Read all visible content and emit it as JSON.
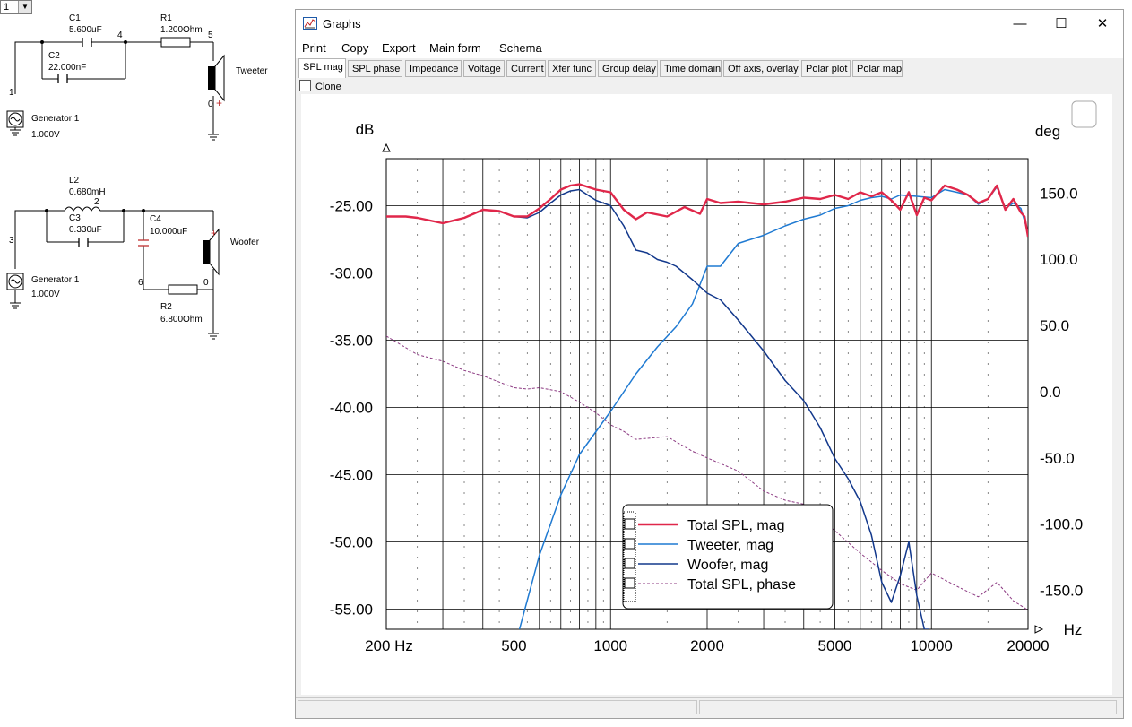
{
  "schematic": {
    "selector_value": "1",
    "tweeter_circuit": {
      "c1_name": "C1",
      "c1_value": "5.600uF",
      "c2_name": "C2",
      "c2_value": "22.000nF",
      "r1_name": "R1",
      "r1_value": "1.200Ohm",
      "node_1": "1",
      "node_4": "4",
      "node_5": "5",
      "node_0": "0",
      "speaker_label": "Tweeter",
      "generator_label": "Generator 1",
      "generator_value": "1.000V"
    },
    "woofer_circuit": {
      "l2_name": "L2",
      "l2_value": "0.680mH",
      "c3_name": "C3",
      "c3_value": "0.330uF",
      "c4_name": "C4",
      "c4_value": "10.000uF",
      "r2_name": "R2",
      "r2_value": "6.800Ohm",
      "node_3": "3",
      "node_2": "2",
      "node_6": "6",
      "node_0": "0",
      "speaker_label": "Woofer",
      "generator_label": "Generator 1",
      "generator_value": "1.000V"
    }
  },
  "window": {
    "title": "Graphs",
    "minimize_glyph": "—",
    "maximize_glyph": "☐",
    "close_glyph": "✕",
    "menu": [
      "Print",
      "Copy",
      "Export",
      "Main form",
      "Schema"
    ],
    "tabs": [
      "SPL mag",
      "SPL phase",
      "Impedance",
      "Voltage",
      "Current",
      "Xfer func",
      "Group delay",
      "Time domain",
      "Off axis, overlay",
      "Polar plot",
      "Polar map"
    ],
    "active_tab": "SPL mag",
    "clone_label": "Clone"
  },
  "chart_data": {
    "type": "line",
    "xscale": "log",
    "xlim": [
      200,
      20000
    ],
    "x_ticks": [
      "200 Hz",
      "500",
      "1000",
      "2000",
      "5000",
      "10000",
      "20000"
    ],
    "x_unit": "Hz",
    "ylabel_left": "dB",
    "ylim_left": [
      -56.5,
      -21.5
    ],
    "y_ticks_left": [
      "-25.00",
      "-30.00",
      "-35.00",
      "-40.00",
      "-45.00",
      "-50.00",
      "-55.00"
    ],
    "ylabel_right": "deg",
    "ylim_right": [
      -179.5,
      176
    ],
    "y_ticks_right": [
      "150.0",
      "100.0",
      "50.0",
      "0.0",
      "-50.0",
      "-100.0",
      "-150.0"
    ],
    "grid": true,
    "legend_position": "bottom-center",
    "series": [
      {
        "name": "Total SPL, mag",
        "color": "#e0274a",
        "axis": "left",
        "x": [
          200,
          230,
          250,
          300,
          350,
          400,
          450,
          500,
          550,
          600,
          650,
          700,
          750,
          800,
          900,
          1000,
          1100,
          1200,
          1300,
          1500,
          1700,
          1900,
          2000,
          2200,
          2500,
          3000,
          3500,
          4000,
          4500,
          5000,
          5500,
          6000,
          6500,
          7000,
          7500,
          8000,
          8500,
          9000,
          9500,
          10000,
          11000,
          12000,
          13000,
          14000,
          15000,
          16000,
          17000,
          18000,
          19000,
          19500,
          20000
        ],
        "y": [
          -25.8,
          -25.8,
          -25.9,
          -26.3,
          -25.9,
          -25.3,
          -25.4,
          -25.8,
          -25.8,
          -25.2,
          -24.5,
          -23.8,
          -23.5,
          -23.4,
          -23.8,
          -24.0,
          -25.3,
          -26.0,
          -25.5,
          -25.8,
          -25.1,
          -25.6,
          -24.5,
          -24.8,
          -24.7,
          -24.9,
          -24.7,
          -24.4,
          -24.5,
          -24.2,
          -24.5,
          -24.0,
          -24.3,
          -24.0,
          -24.6,
          -25.3,
          -24.0,
          -25.7,
          -24.4,
          -24.6,
          -23.5,
          -23.8,
          -24.2,
          -24.8,
          -24.5,
          -23.5,
          -25.3,
          -24.5,
          -25.5,
          -25.8,
          -27.3
        ]
      },
      {
        "name": "Tweeter, mag",
        "color": "#1f7ad2",
        "axis": "left",
        "x": [
          520,
          600,
          700,
          800,
          900,
          1000,
          1200,
          1400,
          1600,
          1800,
          2000,
          2200,
          2500,
          3000,
          3500,
          4000,
          4500,
          5000,
          5500,
          6000,
          6500,
          7000,
          7500,
          8000,
          9000,
          10000,
          11000,
          12000,
          13000,
          14000,
          15000,
          16000,
          17000,
          18000,
          19000,
          20000
        ],
        "y": [
          -56.5,
          -51.0,
          -46.5,
          -43.5,
          -41.8,
          -40.3,
          -37.5,
          -35.5,
          -34.0,
          -32.3,
          -29.5,
          -29.5,
          -27.8,
          -27.2,
          -26.5,
          -26.0,
          -25.7,
          -25.2,
          -25.0,
          -24.6,
          -24.4,
          -24.3,
          -24.5,
          -24.2,
          -24.3,
          -24.4,
          -23.8,
          -24.0,
          -24.2,
          -24.9,
          -24.5,
          -23.6,
          -25.2,
          -24.8,
          -25.2,
          -27.0
        ]
      },
      {
        "name": "Woofer, mag",
        "color": "#12388c",
        "axis": "left",
        "x": [
          200,
          230,
          250,
          300,
          350,
          400,
          450,
          500,
          550,
          600,
          650,
          700,
          750,
          800,
          900,
          1000,
          1100,
          1200,
          1300,
          1400,
          1500,
          1600,
          1800,
          2000,
          2200,
          2500,
          3000,
          3500,
          4000,
          4500,
          5000,
          5500,
          6000,
          6500,
          7000,
          7500,
          8000,
          8500,
          9000,
          9500,
          9800
        ],
        "y": [
          -25.8,
          -25.8,
          -25.9,
          -26.3,
          -25.9,
          -25.3,
          -25.4,
          -25.8,
          -25.9,
          -25.5,
          -24.8,
          -24.2,
          -23.9,
          -23.8,
          -24.6,
          -25.0,
          -26.5,
          -28.3,
          -28.5,
          -29.0,
          -29.2,
          -29.5,
          -30.5,
          -31.5,
          -32.0,
          -33.5,
          -35.8,
          -38.0,
          -39.5,
          -41.5,
          -43.8,
          -45.3,
          -47.0,
          -49.5,
          -53.0,
          -54.5,
          -52.5,
          -50.0,
          -54.0,
          -56.5,
          -56.5
        ]
      },
      {
        "name": "Total SPL, phase",
        "color": "#8c3a82",
        "axis": "right",
        "dashed": true,
        "x": [
          200,
          250,
          300,
          350,
          400,
          500,
          550,
          600,
          700,
          800,
          900,
          1000,
          1100,
          1200,
          1500,
          1800,
          2000,
          2500,
          3000,
          3500,
          4000,
          5000,
          6000,
          7000,
          8000,
          9000,
          10000,
          12000,
          14000,
          16000,
          18000,
          20000
        ],
        "y": [
          42,
          28,
          23,
          16,
          12,
          3,
          2,
          3,
          0,
          -8,
          -16,
          -25,
          -30,
          -36,
          -34,
          -45,
          -50,
          -60,
          -75,
          -82,
          -85,
          -105,
          -122,
          -135,
          -145,
          -150,
          -137,
          -147,
          -155,
          -144,
          -158,
          -165
        ]
      }
    ]
  }
}
